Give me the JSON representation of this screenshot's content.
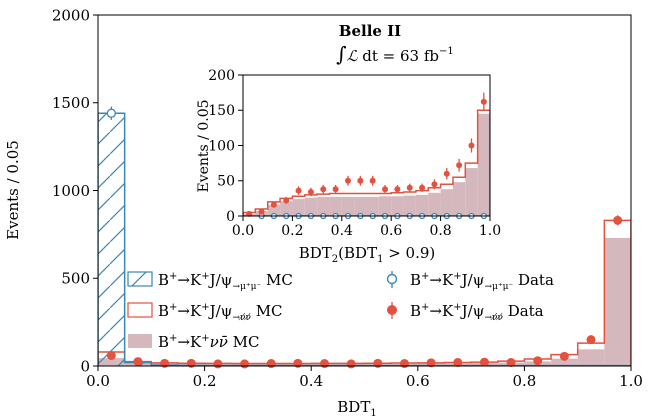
{
  "chart_data": [
    {
      "type": "histogram",
      "xlabel": "BDT$_1$",
      "ylabel": "Events / 0.05",
      "xlim": [
        0.0,
        1.0
      ],
      "ylim": [
        0,
        2000
      ],
      "xticks": [
        "0.0",
        "0.2",
        "0.4",
        "0.6",
        "0.8",
        "1.0"
      ],
      "yticks": [
        "0",
        "500",
        "1000",
        "1500",
        "2000"
      ],
      "bin_edges": [
        0.0,
        0.05,
        0.1,
        0.15,
        0.2,
        0.25,
        0.3,
        0.35,
        0.4,
        0.45,
        0.5,
        0.55,
        0.6,
        0.65,
        0.7,
        0.75,
        0.8,
        0.85,
        0.9,
        0.95,
        1.0
      ],
      "series": [
        {
          "name": "B$^+\\!\\to$K$^+$J/$\\psi_{\\to\\mu^+\\mu^-}$ MC",
          "style": "step-hatched",
          "color": "#3a87b5",
          "values": [
            1440,
            20,
            5,
            3,
            2,
            2,
            2,
            2,
            2,
            2,
            2,
            2,
            2,
            2,
            2,
            2,
            2,
            2,
            2,
            2
          ]
        },
        {
          "name": "B$^+\\!\\to$K$^+$J/$\\psi_{\\to\\nu\\nu}$ MC",
          "style": "step",
          "color": "#e4513f",
          "values": [
            80,
            25,
            18,
            16,
            15,
            14,
            14,
            14,
            15,
            15,
            16,
            17,
            18,
            20,
            22,
            28,
            40,
            65,
            130,
            830
          ]
        },
        {
          "name": "B$^+\\!\\to$K$^+\\nu\\bar{\\nu}$ MC",
          "style": "filled",
          "color": "#d5b8bd",
          "values": [
            45,
            18,
            14,
            12,
            11,
            11,
            11,
            11,
            12,
            12,
            13,
            13,
            14,
            15,
            17,
            20,
            26,
            42,
            95,
            730
          ]
        },
        {
          "name": "B$^+\\!\\to$K$^+$J/$\\psi_{\\to\\mu^+\\mu^-}$ Data",
          "style": "open-markers",
          "color": "#3a87b5",
          "x": [
            0.025
          ],
          "values": [
            1440
          ],
          "errors": [
            38
          ]
        },
        {
          "name": "B$^+\\!\\to$K$^+$J/$\\psi_{\\to\\nu\\nu}$ Data",
          "style": "filled-markers",
          "color": "#e4513f",
          "x": [
            0.025,
            0.075,
            0.125,
            0.175,
            0.225,
            0.275,
            0.325,
            0.375,
            0.425,
            0.475,
            0.525,
            0.575,
            0.625,
            0.675,
            0.725,
            0.775,
            0.825,
            0.875,
            0.925,
            0.975
          ],
          "values": [
            60,
            25,
            15,
            15,
            12,
            12,
            14,
            15,
            14,
            12,
            15,
            14,
            18,
            20,
            22,
            20,
            30,
            55,
            150,
            830
          ],
          "errors": [
            8,
            5,
            4,
            4,
            4,
            4,
            4,
            4,
            4,
            4,
            4,
            4,
            4,
            5,
            5,
            5,
            6,
            8,
            12,
            29
          ]
        }
      ],
      "annotations": [
        "Belle II",
        "$\\int\\mathcal{L}\\,\\mathrm{d}t = 63\\,\\mathrm{fb}^{-1}$"
      ],
      "legend": "lower-left and lower-right inside axes"
    },
    {
      "type": "histogram",
      "xlabel": "BDT$_2$(BDT$_1 > 0.9$)",
      "ylabel": "Events / 0.05",
      "xlim": [
        0.0,
        1.0
      ],
      "ylim": [
        0,
        200
      ],
      "xticks": [
        "0.0",
        "0.2",
        "0.4",
        "0.6",
        "0.8",
        "1.0"
      ],
      "yticks": [
        "0",
        "50",
        "100",
        "150",
        "200"
      ],
      "bin_edges": [
        0.0,
        0.05,
        0.1,
        0.15,
        0.2,
        0.25,
        0.3,
        0.35,
        0.4,
        0.45,
        0.5,
        0.55,
        0.6,
        0.65,
        0.7,
        0.75,
        0.8,
        0.85,
        0.9,
        0.95,
        1.0
      ],
      "series": [
        {
          "name": "B$^+\\!\\to$K$^+$J/$\\psi_{\\to\\nu\\nu}$ MC",
          "style": "step",
          "color": "#e4513f",
          "values": [
            5,
            10,
            20,
            25,
            28,
            30,
            31,
            32,
            32,
            32,
            32,
            32,
            33,
            34,
            36,
            40,
            45,
            55,
            75,
            150
          ]
        },
        {
          "name": "B$^+\\!\\to$K$^+\\nu\\bar{\\nu}$ MC",
          "style": "filled",
          "color": "#d5b8bd",
          "values": [
            3,
            7,
            16,
            21,
            24,
            26,
            27,
            27,
            27,
            27,
            27,
            28,
            28,
            29,
            30,
            33,
            38,
            48,
            68,
            145
          ]
        },
        {
          "name": "B$^+\\!\\to$K$^+$J/$\\psi_{\\to\\mu^+\\mu^-}$ MC",
          "style": "step-hatched",
          "color": "#3a87b5",
          "values": [
            0,
            0,
            0,
            0,
            0,
            0,
            0,
            0,
            0,
            0,
            0,
            0,
            0,
            0,
            0,
            0,
            0,
            0,
            0,
            0
          ]
        },
        {
          "name": "B$^+\\!\\to$K$^+$J/$\\psi_{\\to\\mu^+\\mu^-}$ Data",
          "style": "open-markers",
          "color": "#3a87b5",
          "x": [
            0.075,
            0.125,
            0.175,
            0.225,
            0.275,
            0.325,
            0.375,
            0.425,
            0.475,
            0.525,
            0.575,
            0.625,
            0.675,
            0.725,
            0.775,
            0.825,
            0.875,
            0.925,
            0.975
          ],
          "values": [
            0,
            0,
            0,
            0,
            0,
            0,
            0,
            0,
            0,
            0,
            0,
            0,
            0,
            0,
            0,
            0,
            0,
            0,
            0
          ],
          "errors": []
        },
        {
          "name": "B$^+\\!\\to$K$^+$J/$\\psi_{\\to\\nu\\nu}$ Data",
          "style": "filled-markers",
          "color": "#e4513f",
          "x": [
            0.025,
            0.075,
            0.125,
            0.175,
            0.225,
            0.275,
            0.325,
            0.375,
            0.425,
            0.475,
            0.525,
            0.575,
            0.625,
            0.675,
            0.725,
            0.775,
            0.825,
            0.875,
            0.925,
            0.975
          ],
          "values": [
            3,
            6,
            16,
            22,
            36,
            34,
            38,
            38,
            50,
            50,
            50,
            38,
            38,
            40,
            40,
            45,
            60,
            72,
            100,
            162
          ],
          "errors": [
            2,
            3,
            4,
            5,
            6,
            6,
            6,
            6,
            7,
            7,
            7,
            6,
            6,
            6,
            6,
            7,
            8,
            9,
            10,
            13
          ]
        }
      ]
    }
  ],
  "legend_labels": {
    "mumu_mc": {
      "main": "B",
      "s1": "+",
      "a1": "→K",
      "s2": "+",
      "a2": "J/ψ",
      "sub": "→μ⁺μ⁻",
      "tail": " MC"
    },
    "nunu_mc": {
      "main": "B",
      "s1": "+",
      "a1": "→K",
      "s2": "+",
      "a2": "J/ψ",
      "sub": "→ν̸ν̸",
      "tail": " MC"
    },
    "knunu_mc": {
      "main": "B",
      "s1": "+",
      "a1": "→K",
      "s2": "+",
      "a2": "νν̄",
      "tail": " MC"
    },
    "mumu_data": {
      "main": "B",
      "s1": "+",
      "a1": "→K",
      "s2": "+",
      "a2": "J/ψ",
      "sub": "→μ⁺μ⁻",
      "tail": " Data"
    },
    "nunu_data": {
      "main": "B",
      "s1": "+",
      "a1": "→K",
      "s2": "+",
      "a2": "J/ψ",
      "sub": "→ν̸ν̸",
      "tail": " Data"
    }
  },
  "annotation": {
    "experiment": "Belle II",
    "lumi_prefix": "∫",
    "lumi_L": "ℒ",
    "lumi_rest": " dt = 63 fb",
    "lumi_exp": "−1"
  },
  "main_axes_text": {
    "ylabel": "Events / 0.05",
    "xlabel_main": "BDT",
    "xlabel_sub": "1"
  },
  "inset_axes_text": {
    "ylabel": "Events / 0.05",
    "xlabel_a": "BDT",
    "xlabel_sub": "2",
    "xlabel_b": "(BDT",
    "xlabel_sub2": "1",
    "xlabel_c": " > 0.9)"
  }
}
